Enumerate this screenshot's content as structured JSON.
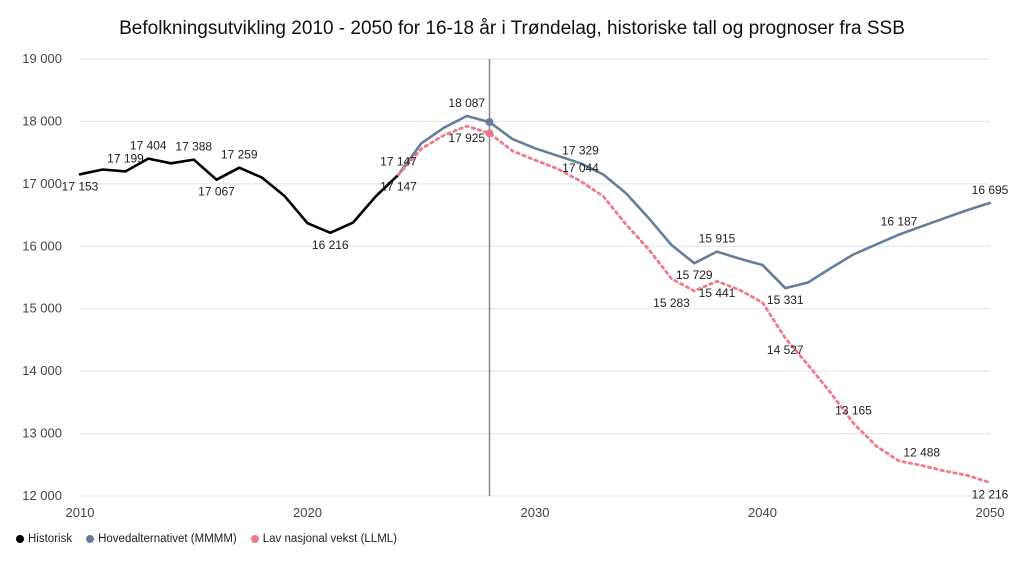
{
  "chart_data": {
    "type": "line",
    "title": "Befolkningsutvikling 2010 - 2050 for 16-18 år i Trøndelag, historiske tall og prognoser fra SSB",
    "xlabel": "",
    "ylabel": "",
    "xlim": [
      2010,
      2050
    ],
    "ylim": [
      12000,
      19000
    ],
    "x_ticks": [
      "2010",
      "2020",
      "2030",
      "2040",
      "2050"
    ],
    "y_ticks": [
      "12 000",
      "13 000",
      "14 000",
      "15 000",
      "16 000",
      "17 000",
      "18 000",
      "19 000"
    ],
    "grid": "horizontal",
    "legend": "bottom-left",
    "marker_year": 2028,
    "series": [
      {
        "name": "Historisk",
        "color": "#000000",
        "style": "solid",
        "x": [
          2010,
          2011,
          2012,
          2013,
          2014,
          2015,
          2016,
          2017,
          2018,
          2019,
          2020,
          2021,
          2022,
          2023,
          2024
        ],
        "y": [
          17153,
          17230,
          17199,
          17404,
          17330,
          17388,
          17067,
          17259,
          17100,
          16800,
          16370,
          16216,
          16380,
          16800,
          17147
        ]
      },
      {
        "name": "Hovedalternativet (MMMM)",
        "color": "#637f9c",
        "style": "solid",
        "x": [
          2024,
          2025,
          2026,
          2027,
          2028,
          2029,
          2030,
          2031,
          2032,
          2033,
          2034,
          2035,
          2036,
          2037,
          2038,
          2039,
          2040,
          2041,
          2042,
          2043,
          2044,
          2045,
          2046,
          2047,
          2048,
          2049,
          2050
        ],
        "y": [
          17147,
          17650,
          17900,
          18087,
          17990,
          17720,
          17570,
          17450,
          17329,
          17150,
          16850,
          16450,
          16020,
          15729,
          15915,
          15800,
          15700,
          15331,
          15420,
          15650,
          15870,
          16030,
          16187,
          16320,
          16450,
          16580,
          16695
        ]
      },
      {
        "name": "Lav nasjonal vekst (LLML)",
        "color": "#ee7b8a",
        "style": "dotted",
        "x": [
          2024,
          2025,
          2026,
          2027,
          2028,
          2029,
          2030,
          2031,
          2032,
          2033,
          2034,
          2035,
          2036,
          2037,
          2038,
          2039,
          2040,
          2041,
          2042,
          2043,
          2044,
          2045,
          2046,
          2047,
          2048,
          2049,
          2050
        ],
        "y": [
          17147,
          17560,
          17780,
          17925,
          17810,
          17530,
          17380,
          17240,
          17044,
          16800,
          16350,
          15950,
          15480,
          15283,
          15441,
          15300,
          15100,
          14527,
          14100,
          13650,
          13165,
          12800,
          12560,
          12488,
          12400,
          12330,
          12216
        ]
      }
    ],
    "data_labels": [
      {
        "text": "17 153",
        "x": 2010,
        "y": 17153,
        "pos": "below"
      },
      {
        "text": "17 199",
        "x": 2012,
        "y": 17199,
        "pos": "above"
      },
      {
        "text": "17 404",
        "x": 2013,
        "y": 17404,
        "pos": "above"
      },
      {
        "text": "17 388",
        "x": 2015,
        "y": 17388,
        "pos": "above"
      },
      {
        "text": "17 067",
        "x": 2016,
        "y": 17067,
        "pos": "below"
      },
      {
        "text": "17 259",
        "x": 2017,
        "y": 17259,
        "pos": "above"
      },
      {
        "text": "16 216",
        "x": 2021,
        "y": 16216,
        "pos": "below"
      },
      {
        "text": "17 147",
        "x": 2024,
        "y": 17147,
        "pos": "above"
      },
      {
        "text": "17 147",
        "x": 2024,
        "y": 17147,
        "pos": "below"
      },
      {
        "text": "18 087",
        "x": 2027,
        "y": 18087,
        "pos": "above"
      },
      {
        "text": "17 925",
        "x": 2027,
        "y": 17925,
        "pos": "below"
      },
      {
        "text": "17 329",
        "x": 2032,
        "y": 17329,
        "pos": "above"
      },
      {
        "text": "17 044",
        "x": 2032,
        "y": 17044,
        "pos": "above"
      },
      {
        "text": "15 915",
        "x": 2038,
        "y": 15915,
        "pos": "above"
      },
      {
        "text": "15 729",
        "x": 2037,
        "y": 15729,
        "pos": "below"
      },
      {
        "text": "15 283",
        "x": 2036,
        "y": 15283,
        "pos": "below"
      },
      {
        "text": "15 441",
        "x": 2038,
        "y": 15441,
        "pos": "below"
      },
      {
        "text": "15 331",
        "x": 2041,
        "y": 15331,
        "pos": "below"
      },
      {
        "text": "14 527",
        "x": 2041,
        "y": 14527,
        "pos": "below"
      },
      {
        "text": "16 187",
        "x": 2046,
        "y": 16187,
        "pos": "above"
      },
      {
        "text": "16 695",
        "x": 2050,
        "y": 16695,
        "pos": "above"
      },
      {
        "text": "13 165",
        "x": 2044,
        "y": 13165,
        "pos": "above"
      },
      {
        "text": "12 488",
        "x": 2047,
        "y": 12488,
        "pos": "above"
      },
      {
        "text": "12 216",
        "x": 2050,
        "y": 12216,
        "pos": "below"
      }
    ]
  },
  "legend": {
    "items": [
      {
        "label": "Historisk",
        "color": "#000000"
      },
      {
        "label": "Hovedalternativet (MMMM)",
        "color": "#637f9c"
      },
      {
        "label": "Lav nasjonal vekst (LLML)",
        "color": "#ee7b8a"
      }
    ]
  }
}
